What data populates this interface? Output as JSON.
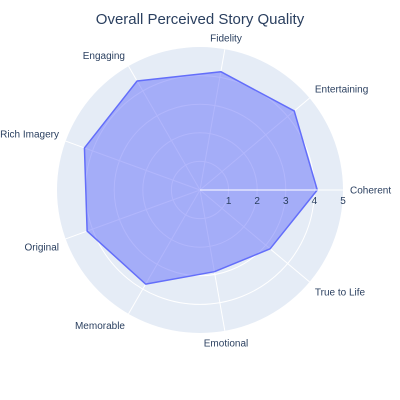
{
  "chart_data": {
    "type": "radar",
    "title": "Overall Perceived Story Quality",
    "categories": [
      "Coherent",
      "Entertaining",
      "Fidelity",
      "Engaging",
      "Rich Imagery",
      "Original",
      "Memorable",
      "Emotional",
      "True to Life"
    ],
    "series": [
      {
        "values": [
          4.1,
          4.3,
          4.2,
          4.4,
          4.3,
          4.2,
          3.8,
          2.9,
          3.2
        ]
      }
    ],
    "radial_range": [
      0,
      5
    ],
    "radial_ticks": [
      1,
      2,
      3,
      4,
      5
    ],
    "colors": {
      "fill": "#636efa",
      "line": "#636efa",
      "background": "#e5ecf6",
      "grid": "#ffffff",
      "text": "#2a3f5f"
    }
  }
}
